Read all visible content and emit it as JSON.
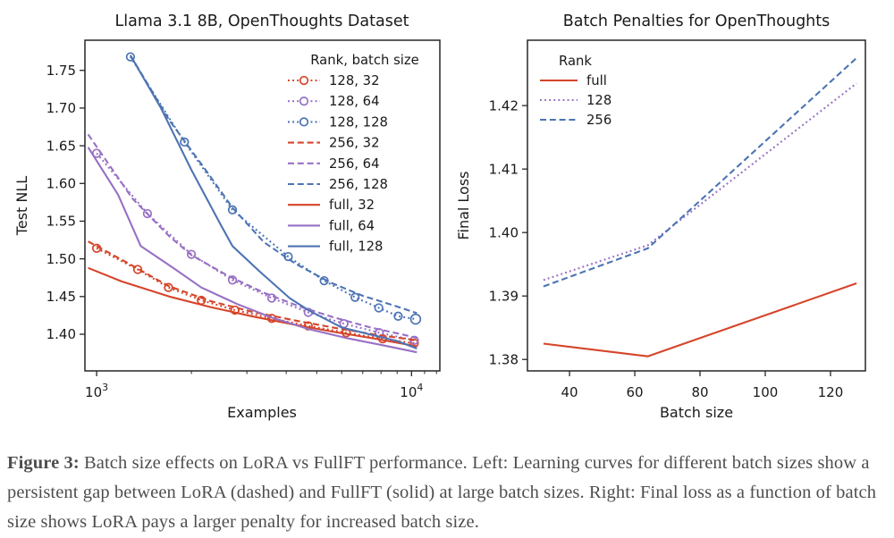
{
  "caption": {
    "label": "Figure 3:",
    "body": " Batch size effects on LoRA vs FullFT performance. Left: Learning curves for different batch sizes show a persistent gap between LoRA (dashed) and FullFT (solid) at large batch sizes. Right: Final loss as a function of batch size shows LoRA pays a larger penalty for increased batch size."
  },
  "colors": {
    "red": "#d5452a",
    "purple": "#9770c4",
    "blue": "#4d74b4",
    "axis": "#262626",
    "text": "#1a1a1a"
  },
  "chart_data": [
    {
      "type": "line",
      "title": "Llama 3.1 8B, OpenThoughts Dataset",
      "xlabel": "Examples",
      "ylabel": "Test NLL",
      "xscale": "log",
      "xlim": [
        918,
        12300
      ],
      "ylim": [
        1.3514,
        1.79
      ],
      "grid": false,
      "x_major_ticks": [
        {
          "value": 1000,
          "base": "10",
          "exp": "3"
        },
        {
          "value": 10000,
          "base": "10",
          "exp": "4"
        }
      ],
      "x_minor_ticks": [
        2000,
        3000,
        4000,
        5000,
        6000,
        7000,
        8000,
        9000,
        11000,
        12000
      ],
      "y_ticks": [
        {
          "value": 1.4,
          "label": "1.40"
        },
        {
          "value": 1.45,
          "label": "1.45"
        },
        {
          "value": 1.5,
          "label": "1.50"
        },
        {
          "value": 1.55,
          "label": "1.55"
        },
        {
          "value": 1.6,
          "label": "1.60"
        },
        {
          "value": 1.65,
          "label": "1.65"
        },
        {
          "value": 1.7,
          "label": "1.70"
        },
        {
          "value": 1.75,
          "label": "1.75"
        }
      ],
      "legend": {
        "title": "Rank, batch size",
        "position": "upper right"
      },
      "series": [
        {
          "name": "128, 32",
          "color": "red",
          "style": "dotted",
          "markers": true,
          "points": [
            [
              1000,
              1.514
            ],
            [
              1350,
              1.486
            ],
            [
              1690,
              1.462
            ],
            [
              2150,
              1.445
            ],
            [
              2750,
              1.432
            ],
            [
              3600,
              1.421
            ],
            [
              4700,
              1.411
            ],
            [
              6200,
              1.402
            ],
            [
              8100,
              1.394
            ],
            [
              10200,
              1.388
            ]
          ]
        },
        {
          "name": "128, 64",
          "color": "purple",
          "style": "dotted",
          "markers": true,
          "points": [
            [
              1000,
              1.64
            ],
            [
              1450,
              1.56
            ],
            [
              2000,
              1.506
            ],
            [
              2700,
              1.472
            ],
            [
              3600,
              1.448
            ],
            [
              4700,
              1.429
            ],
            [
              6100,
              1.414
            ],
            [
              7900,
              1.402
            ],
            [
              10200,
              1.392
            ]
          ]
        },
        {
          "name": "128, 128",
          "color": "blue",
          "style": "dotted",
          "markers": true,
          "points": [
            [
              1280,
              1.768
            ],
            [
              1900,
              1.655
            ],
            [
              2700,
              1.565
            ],
            [
              4060,
              1.503
            ],
            [
              5280,
              1.471
            ],
            [
              6620,
              1.449
            ],
            [
              7870,
              1.435
            ],
            [
              9070,
              1.424
            ],
            [
              10300,
              1.42
            ]
          ]
        },
        {
          "name": "256, 32",
          "color": "red",
          "style": "dashed",
          "markers": false,
          "points": [
            [
              940,
              1.523
            ],
            [
              1250,
              1.495
            ],
            [
              1690,
              1.464
            ],
            [
              2300,
              1.444
            ],
            [
              3100,
              1.43
            ],
            [
              4300,
              1.418
            ],
            [
              5800,
              1.408
            ],
            [
              7800,
              1.399
            ],
            [
              10400,
              1.392
            ]
          ]
        },
        {
          "name": "256, 64",
          "color": "purple",
          "style": "dashed",
          "markers": false,
          "points": [
            [
              940,
              1.665
            ],
            [
              1300,
              1.58
            ],
            [
              1700,
              1.53
            ],
            [
              2000,
              1.505
            ],
            [
              2600,
              1.478
            ],
            [
              3400,
              1.455
            ],
            [
              4400,
              1.437
            ],
            [
              5700,
              1.422
            ],
            [
              7400,
              1.409
            ],
            [
              9500,
              1.399
            ],
            [
              10400,
              1.395
            ]
          ]
        },
        {
          "name": "256, 128",
          "color": "blue",
          "style": "dashed",
          "markers": false,
          "points": [
            [
              1280,
              1.77
            ],
            [
              1700,
              1.684
            ],
            [
              2200,
              1.62
            ],
            [
              2700,
              1.568
            ],
            [
              3400,
              1.522
            ],
            [
              4300,
              1.493
            ],
            [
              5500,
              1.469
            ],
            [
              7000,
              1.451
            ],
            [
              8800,
              1.438
            ],
            [
              10400,
              1.428
            ]
          ]
        },
        {
          "name": "full, 32",
          "color": "red",
          "style": "solid",
          "markers": false,
          "points": [
            [
              940,
              1.488
            ],
            [
              1200,
              1.47
            ],
            [
              1700,
              1.45
            ],
            [
              2300,
              1.436
            ],
            [
              3100,
              1.424
            ],
            [
              4200,
              1.413
            ],
            [
              5700,
              1.403
            ],
            [
              7700,
              1.394
            ],
            [
              10400,
              1.384
            ]
          ]
        },
        {
          "name": "full, 64",
          "color": "purple",
          "style": "solid",
          "markers": false,
          "points": [
            [
              940,
              1.648
            ],
            [
              1170,
              1.585
            ],
            [
              1380,
              1.517
            ],
            [
              1750,
              1.488
            ],
            [
              2150,
              1.462
            ],
            [
              2800,
              1.44
            ],
            [
              3600,
              1.422
            ],
            [
              4700,
              1.407
            ],
            [
              6200,
              1.395
            ],
            [
              8200,
              1.385
            ],
            [
              10400,
              1.376
            ]
          ]
        },
        {
          "name": "full, 128",
          "color": "blue",
          "style": "solid",
          "markers": false,
          "points": [
            [
              1280,
              1.77
            ],
            [
              1600,
              1.7
            ],
            [
              2000,
              1.618
            ],
            [
              2480,
              1.545
            ],
            [
              2700,
              1.517
            ],
            [
              3300,
              1.483
            ],
            [
              4100,
              1.448
            ],
            [
              4700,
              1.432
            ],
            [
              6000,
              1.409
            ],
            [
              7500,
              1.399
            ],
            [
              9000,
              1.391
            ],
            [
              10400,
              1.381
            ]
          ]
        }
      ]
    },
    {
      "type": "line",
      "title": "Batch Penalties for OpenThoughts",
      "xlabel": "Batch size",
      "ylabel": "Final Loss",
      "xscale": "linear",
      "xlim": [
        27.1,
        130.7
      ],
      "ylim": [
        1.3782,
        1.4303
      ],
      "grid": false,
      "x_major_ticks": [
        {
          "value": 40,
          "base": "40"
        },
        {
          "value": 60,
          "base": "60"
        },
        {
          "value": 80,
          "base": "80"
        },
        {
          "value": 100,
          "base": "100"
        },
        {
          "value": 120,
          "base": "120"
        }
      ],
      "x_minor_ticks": [],
      "y_ticks": [
        {
          "value": 1.38,
          "label": "1.38"
        },
        {
          "value": 1.39,
          "label": "1.39"
        },
        {
          "value": 1.4,
          "label": "1.40"
        },
        {
          "value": 1.41,
          "label": "1.41"
        },
        {
          "value": 1.42,
          "label": "1.42"
        }
      ],
      "legend": {
        "title": "Rank",
        "position": "upper left"
      },
      "series": [
        {
          "name": "full",
          "color": "red",
          "style": "solid",
          "markers": false,
          "points": [
            [
              32,
              1.3825
            ],
            [
              64,
              1.3805
            ],
            [
              128,
              1.392
            ]
          ]
        },
        {
          "name": "128",
          "color": "purple",
          "style": "dotted",
          "markers": false,
          "points": [
            [
              32,
              1.3925
            ],
            [
              64,
              1.398
            ],
            [
              128,
              1.4235
            ]
          ]
        },
        {
          "name": "256",
          "color": "blue",
          "style": "dashed",
          "markers": false,
          "points": [
            [
              32,
              1.3915
            ],
            [
              64,
              1.3975
            ],
            [
              128,
              1.4275
            ]
          ]
        }
      ]
    }
  ]
}
